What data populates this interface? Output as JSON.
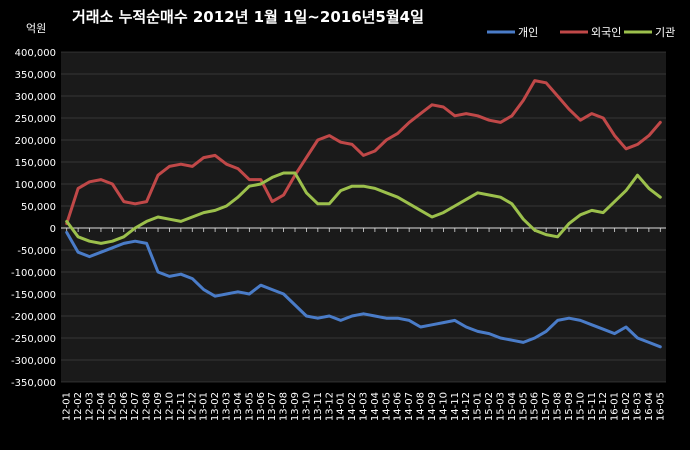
{
  "chart_data": {
    "type": "line",
    "title": "거래소  누적순매수 2012년 1월 1일~2016년5월4일",
    "unit_label": "억원",
    "ylim": [
      -350000,
      400000
    ],
    "yticks": [
      400000,
      350000,
      300000,
      250000,
      200000,
      150000,
      100000,
      50000,
      0,
      -50000,
      -100000,
      -150000,
      -200000,
      -250000,
      -300000,
      -350000
    ],
    "ytick_labels": [
      "400,000",
      "350,000",
      "300,000",
      "250,000",
      "200,000",
      "150,000",
      "100,000",
      "50,000",
      "0",
      "-50,000",
      "-100,000",
      "-150,000",
      "-200,000",
      "-250,000",
      "-300,000",
      "-350,000"
    ],
    "grid": true,
    "legend_position": "top-right",
    "categories": [
      "12-01",
      "12-02",
      "12-03",
      "12-04",
      "12-05",
      "12-06",
      "12-07",
      "12-08",
      "12-09",
      "12-10",
      "12-11",
      "12-12",
      "13-01",
      "13-02",
      "13-03",
      "13-04",
      "13-05",
      "13-06",
      "13-07",
      "13-08",
      "13-09",
      "13-10",
      "13-11",
      "13-12",
      "14-01",
      "14-02",
      "14-03",
      "14-04",
      "14-05",
      "14-06",
      "14-07",
      "14-08",
      "14-09",
      "14-10",
      "14-11",
      "14-12",
      "15-01",
      "15-02",
      "15-03",
      "15-04",
      "15-05",
      "15-06",
      "15-07",
      "15-08",
      "15-09",
      "15-10",
      "15-11",
      "15-12",
      "16-01",
      "16-02",
      "16-03",
      "16-04",
      "16-05"
    ],
    "series": [
      {
        "name": "개인",
        "color": "#4a7cc8",
        "values": [
          -10000,
          -55000,
          -65000,
          -55000,
          -45000,
          -35000,
          -30000,
          -35000,
          -100000,
          -110000,
          -105000,
          -115000,
          -140000,
          -155000,
          -150000,
          -145000,
          -150000,
          -130000,
          -140000,
          -150000,
          -175000,
          -200000,
          -205000,
          -200000,
          -210000,
          -200000,
          -195000,
          -200000,
          -205000,
          -205000,
          -210000,
          -225000,
          -220000,
          -215000,
          -210000,
          -225000,
          -235000,
          -240000,
          -250000,
          -255000,
          -260000,
          -250000,
          -235000,
          -210000,
          -205000,
          -210000,
          -220000,
          -230000,
          -240000,
          -225000,
          -250000,
          -260000,
          -270000
        ]
      },
      {
        "name": "외국인",
        "color": "#c04848",
        "values": [
          10000,
          90000,
          105000,
          110000,
          100000,
          60000,
          55000,
          60000,
          120000,
          140000,
          145000,
          140000,
          160000,
          165000,
          145000,
          135000,
          110000,
          110000,
          60000,
          75000,
          120000,
          160000,
          200000,
          210000,
          195000,
          190000,
          165000,
          175000,
          200000,
          215000,
          240000,
          260000,
          280000,
          275000,
          255000,
          260000,
          255000,
          245000,
          240000,
          255000,
          290000,
          335000,
          330000,
          300000,
          270000,
          245000,
          260000,
          250000,
          210000,
          180000,
          190000,
          210000,
          240000
        ]
      },
      {
        "name": "기관",
        "color": "#9cc04c",
        "values": [
          15000,
          -20000,
          -30000,
          -35000,
          -30000,
          -20000,
          0,
          15000,
          25000,
          20000,
          15000,
          25000,
          35000,
          40000,
          50000,
          70000,
          95000,
          100000,
          115000,
          125000,
          125000,
          80000,
          55000,
          55000,
          85000,
          95000,
          95000,
          90000,
          80000,
          70000,
          55000,
          40000,
          25000,
          35000,
          50000,
          65000,
          80000,
          75000,
          70000,
          55000,
          20000,
          -5000,
          -15000,
          -20000,
          10000,
          30000,
          40000,
          35000,
          60000,
          85000,
          120000,
          90000,
          70000
        ]
      }
    ]
  }
}
